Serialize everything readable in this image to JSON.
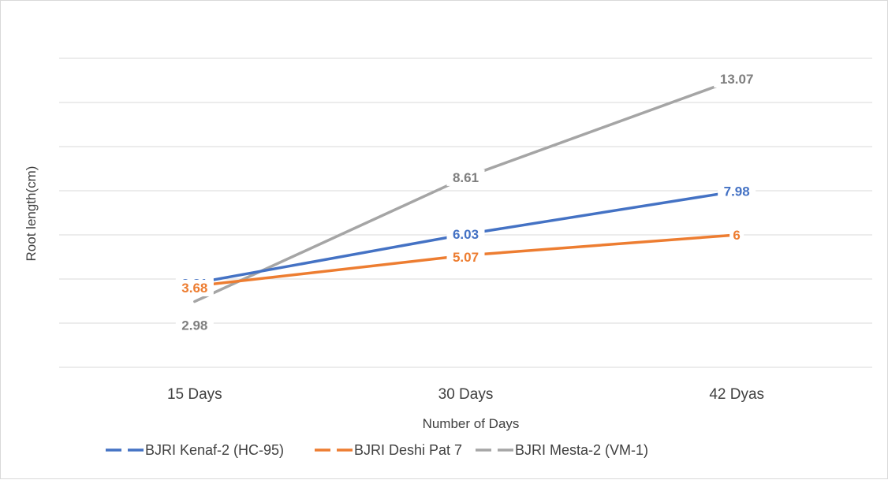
{
  "chart_data": {
    "type": "line",
    "title": "",
    "xlabel": "Number of Days",
    "ylabel": "Root length(cm)",
    "categories": [
      "15 Days",
      "30 Days",
      "42 Dyas"
    ],
    "ylim": [
      0,
      14
    ],
    "y_gridline_step": 2,
    "y_tick_labels_shown": false,
    "grid": true,
    "legend_position": "bottom",
    "series": [
      {
        "name": "BJRI Kenaf-2 (HC-95)",
        "values": [
          3.81,
          6.03,
          7.98
        ],
        "labels": [
          "3.81",
          "6.03",
          "7.98"
        ],
        "color": "#4472C4"
      },
      {
        "name": "BJRI Deshi Pat 7",
        "values": [
          3.68,
          5.07,
          6
        ],
        "labels": [
          "3.68",
          "5.07",
          "6"
        ],
        "color": "#ED7D31"
      },
      {
        "name": "BJRI Mesta-2 (VM-1)",
        "values": [
          2.98,
          8.61,
          13.07
        ],
        "labels": [
          "2.98",
          "8.61",
          "13.07"
        ],
        "color": "#A5A5A5"
      }
    ]
  }
}
